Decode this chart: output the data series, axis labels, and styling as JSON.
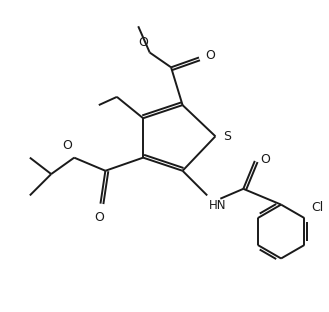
{
  "bg_color": "#ffffff",
  "line_color": "#1a1a1a",
  "lw": 1.4,
  "figsize": [
    3.29,
    3.12
  ],
  "dpi": 100,
  "xlim": [
    0,
    10
  ],
  "ylim": [
    0,
    9.5
  ]
}
